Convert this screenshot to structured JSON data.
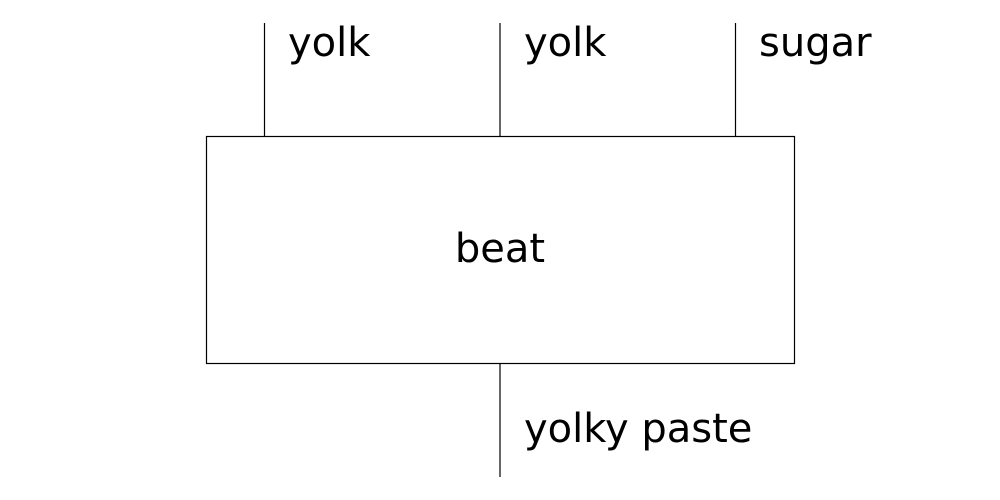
{
  "process": {
    "label": "beat"
  },
  "inputs": [
    {
      "label": "yolk"
    },
    {
      "label": "yolk"
    },
    {
      "label": "sugar"
    }
  ],
  "outputs": [
    {
      "label": "yolky paste"
    }
  ],
  "colors": {
    "stroke": "#000000",
    "background": "#ffffff"
  }
}
